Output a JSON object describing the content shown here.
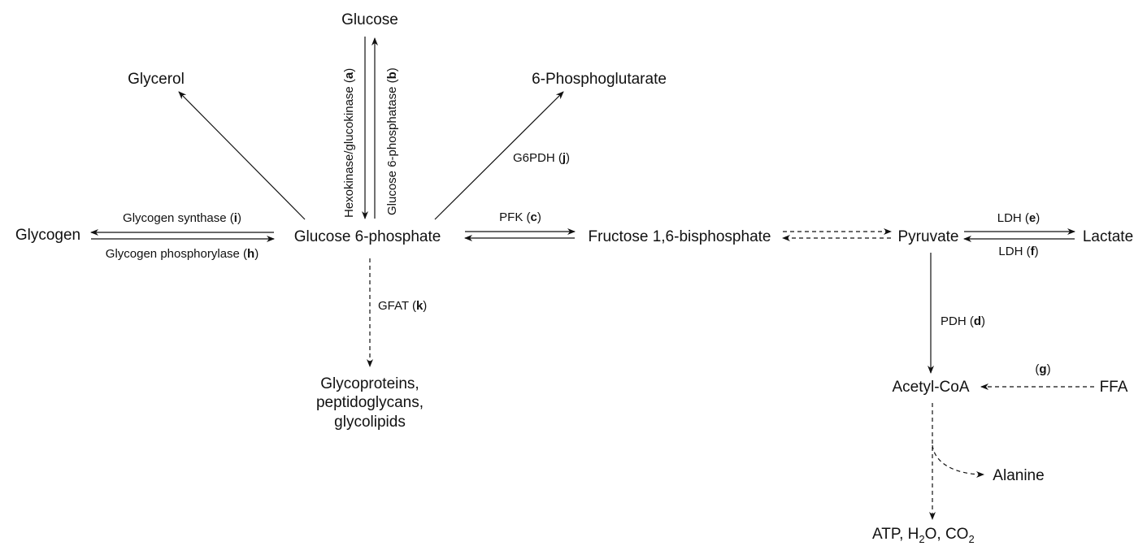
{
  "nodes": {
    "glucose": "Glucose",
    "glycerol": "Glycerol",
    "phosphoglutarate": "6-Phosphoglutarate",
    "glycogen": "Glycogen",
    "g6p": "Glucose 6-phosphate",
    "f16bp": "Fructose 1,6-bisphosphate",
    "pyruvate": "Pyruvate",
    "lactate": "Lactate",
    "glycoproteins": [
      "Glycoproteins,",
      "peptidoglycans,",
      "glycolipids"
    ],
    "acetylcoa": "Acetyl-CoA",
    "ffa": "FFA",
    "alanine": "Alanine",
    "atp_main": "ATP, H",
    "atp_sub1": "2",
    "atp_mid": "O, CO",
    "atp_sub2": "2"
  },
  "enzymes": {
    "a_name": "Hexokinase/glucokinase (",
    "a_letter": "a",
    "a_close": ")",
    "b_name": "Glucose 6-phosphatase (",
    "b_letter": "b",
    "b_close": ")",
    "c_name": "PFK (",
    "c_letter": "c",
    "c_close": ")",
    "d_name": "PDH (",
    "d_letter": "d",
    "d_close": ")",
    "e_name": "LDH (",
    "e_letter": "e",
    "e_close": ")",
    "f_name": "LDH (",
    "f_letter": "f",
    "f_close": ")",
    "g_open": "(",
    "g_letter": "g",
    "g_close": ")",
    "h_name": "Glycogen phosphorylase (",
    "h_letter": "h",
    "h_close": ")",
    "i_name": "Glycogen synthase (",
    "i_letter": "i",
    "i_close": ")",
    "j_name": "G6PDH (",
    "j_letter": "j",
    "j_close": ")",
    "k_name": "GFAT (",
    "k_letter": "k",
    "k_close": ")"
  }
}
